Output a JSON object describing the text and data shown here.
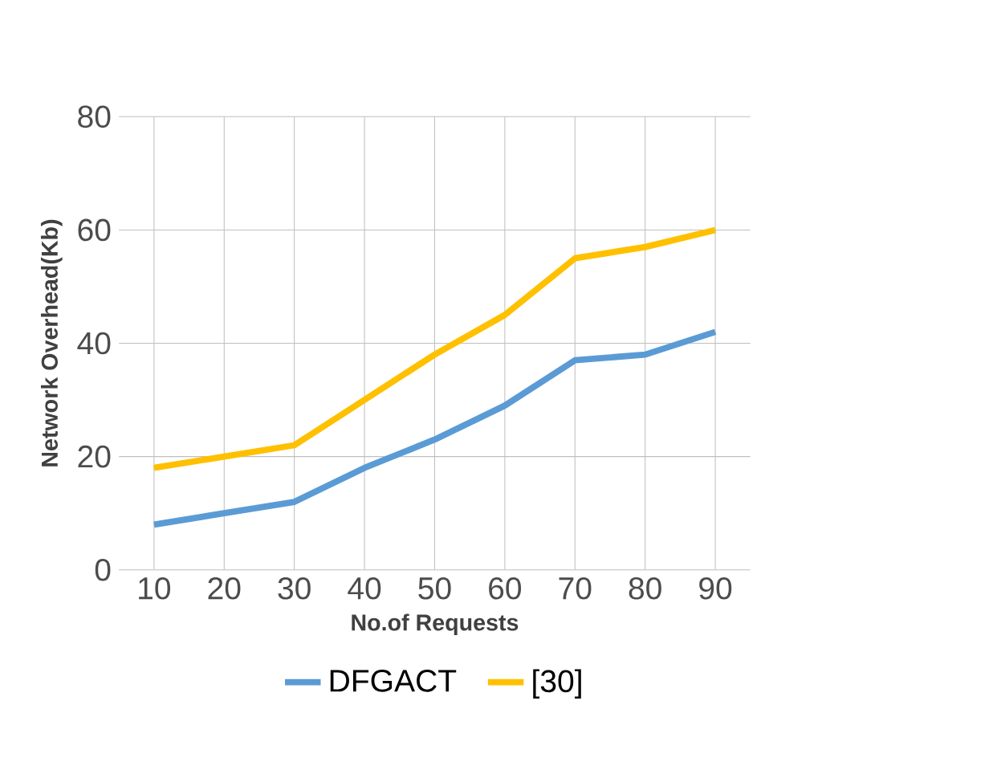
{
  "chart_data": {
    "type": "line",
    "xlabel": "No.of Requests",
    "ylabel": "Network Overhead(Kb)",
    "categories": [
      "10",
      "20",
      "30",
      "40",
      "50",
      "60",
      "70",
      "80",
      "90"
    ],
    "series": [
      {
        "name": "DFGACT",
        "color": "#5b9bd5",
        "values": [
          8,
          10,
          12,
          18,
          23,
          29,
          37,
          38,
          42
        ]
      },
      {
        "name": "[30]",
        "color": "#ffc000",
        "values": [
          18,
          20,
          22,
          30,
          38,
          45,
          55,
          57,
          60
        ]
      }
    ],
    "ylim": [
      0,
      80
    ],
    "yticks": [
      0,
      20,
      40,
      60,
      80
    ],
    "grid": true,
    "legend": "bottom",
    "marker": "none",
    "line_style": "solid"
  }
}
